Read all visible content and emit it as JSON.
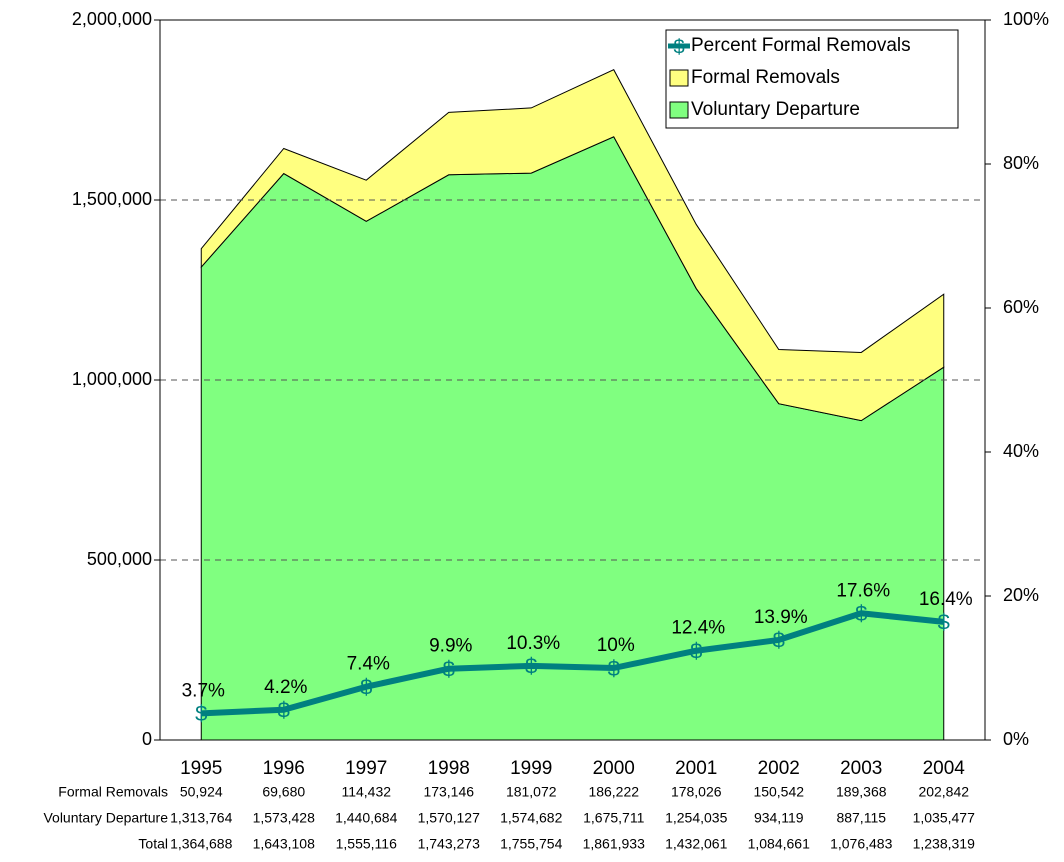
{
  "chart_data": {
    "type": "stacked-area-line",
    "categories": [
      "1995",
      "1996",
      "1997",
      "1998",
      "1999",
      "2000",
      "2001",
      "2002",
      "2003",
      "2004"
    ],
    "series": [
      {
        "name": "Voluntary Departure",
        "color": "#80ff80",
        "type": "area",
        "values": [
          1313764,
          1573428,
          1440684,
          1570127,
          1574682,
          1675711,
          1254035,
          934119,
          887115,
          1035477
        ],
        "value_labels": [
          "1,313,764",
          "1,573,428",
          "1,440,684",
          "1,570,127",
          "1,574,682",
          "1,675,711",
          "1,254,035",
          "934,119",
          "887,115",
          "1,035,477"
        ]
      },
      {
        "name": "Formal Removals",
        "color": "#ffff80",
        "type": "area",
        "values": [
          50924,
          69680,
          114432,
          173146,
          181072,
          186222,
          178026,
          150542,
          189368,
          202842
        ],
        "value_labels": [
          "50,924",
          "69,680",
          "114,432",
          "173,146",
          "181,072",
          "186,222",
          "178,026",
          "150,542",
          "189,368",
          "202,842"
        ]
      },
      {
        "name": "Percent Formal Removals",
        "color": "#008080",
        "type": "line",
        "axis": "y2",
        "marker": "$",
        "values": [
          3.7,
          4.2,
          7.4,
          9.9,
          10.3,
          10,
          12.4,
          13.9,
          17.6,
          16.4
        ],
        "value_labels": [
          "3.7%",
          "4.2%",
          "7.4%",
          "9.9%",
          "10.3%",
          "10%",
          "12.4%",
          "13.9%",
          "17.6%",
          "16.4%"
        ]
      }
    ],
    "ylim": [
      0,
      2000000
    ],
    "yticks": [
      0,
      {
        "value": 500000,
        "label": "500,000"
      },
      {
        "value": 1000000,
        "label": "1,000,000"
      },
      {
        "value": 1500000,
        "label": "1,500,000"
      },
      {
        "value": 2000000,
        "label": "2,000,000"
      }
    ],
    "y2lim": [
      0,
      100
    ],
    "y2ticks": [
      {
        "value": 0,
        "label": "0%"
      },
      {
        "value": 20,
        "label": "20%"
      },
      {
        "value": 40,
        "label": "40%"
      },
      {
        "value": 60,
        "label": "60%"
      },
      {
        "value": 80,
        "label": "80%"
      },
      {
        "value": 100,
        "label": "100%"
      }
    ],
    "grid": true,
    "legend": "top-right",
    "data_table": {
      "row_order": [
        1,
        0
      ],
      "total_label": "Total",
      "total_labels": [
        "1,364,688",
        "1,643,108",
        "1,555,116",
        "1,743,273",
        "1,755,754",
        "1,861,933",
        "1,432,061",
        "1,084,661",
        "1,076,483",
        "1,238,319"
      ]
    }
  }
}
